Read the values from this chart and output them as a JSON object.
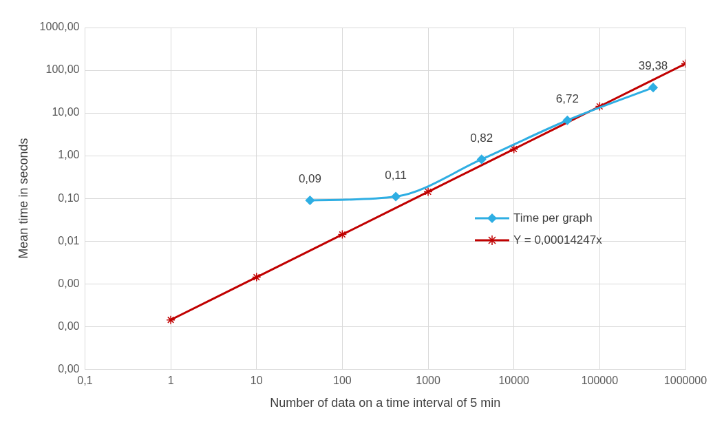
{
  "chart_data": {
    "type": "line",
    "xlabel": "Number of data on a time interval of 5 min",
    "ylabel": "Mean time in seconds",
    "log": "xy",
    "grid": true,
    "legend": "right",
    "xlim": [
      0.1,
      1000000
    ],
    "xticks": [
      {
        "value": 0.1,
        "label": "0,1"
      },
      1,
      10,
      100,
      1000,
      10000,
      100000,
      1000000
    ],
    "ylim": [
      1e-05,
      1000
    ],
    "yticks": [
      {
        "value": 1e-05,
        "label": "0,00"
      },
      {
        "value": 0.0001,
        "label": "0,00"
      },
      {
        "value": 0.001,
        "label": "0,00"
      },
      {
        "value": 0.01,
        "label": "0,01"
      },
      {
        "value": 0.1,
        "label": "0,10"
      },
      {
        "value": 1,
        "label": "1,00"
      },
      {
        "value": 10,
        "label": "10,00"
      },
      {
        "value": 100,
        "label": "100,00"
      },
      {
        "value": 1000,
        "label": "1000,00"
      }
    ],
    "series": [
      {
        "name": "Time per graph",
        "color": "#2eaee3",
        "marker": "diamond",
        "x": [
          42,
          420,
          4200,
          42000,
          420000
        ],
        "values": [
          0.09,
          0.11,
          0.82,
          6.72,
          39.38
        ],
        "value_labels": [
          "0,09",
          "0,11",
          "0,82",
          "6,72",
          "39,38"
        ]
      },
      {
        "name": "Y = 0,00014247x",
        "color": "#c00000",
        "marker": "cross",
        "x": [
          1,
          10,
          100,
          1000,
          10000,
          100000,
          1000000
        ],
        "values": [
          0.00014247,
          0.0014247,
          0.014247,
          0.14247,
          1.4247,
          14.247,
          142.47
        ]
      }
    ]
  }
}
